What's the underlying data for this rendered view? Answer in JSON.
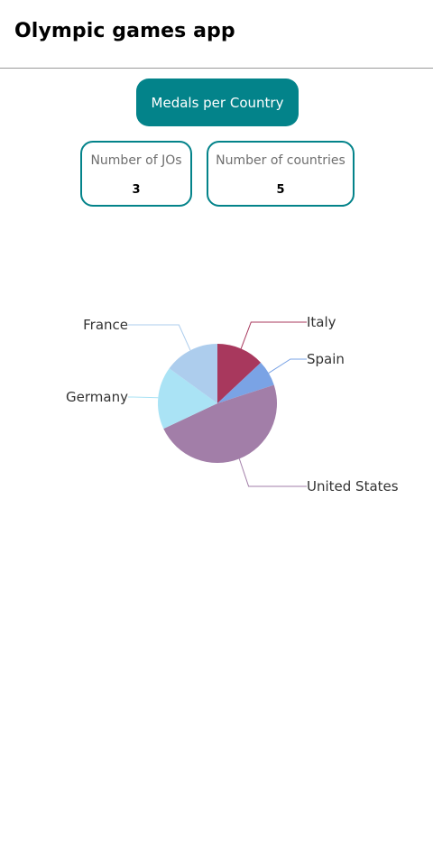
{
  "header": {
    "title": "Olympic games app"
  },
  "nav": {
    "medals_button_label": "Medals per Country"
  },
  "stats": {
    "jos_label": "Number of JOs",
    "jos_value": "3",
    "countries_label": "Number of countries",
    "countries_value": "5"
  },
  "chart_data": {
    "type": "pie",
    "title": "",
    "slices": [
      {
        "name": "Italy",
        "value": 13,
        "color": "#a8385d"
      },
      {
        "name": "Spain",
        "value": 7,
        "color": "#7aa3e5"
      },
      {
        "name": "United States",
        "value": 48,
        "color": "#a27ea8"
      },
      {
        "name": "Germany",
        "value": 17,
        "color": "#aae3f5"
      },
      {
        "name": "France",
        "value": 15,
        "color": "#adcded"
      }
    ]
  }
}
